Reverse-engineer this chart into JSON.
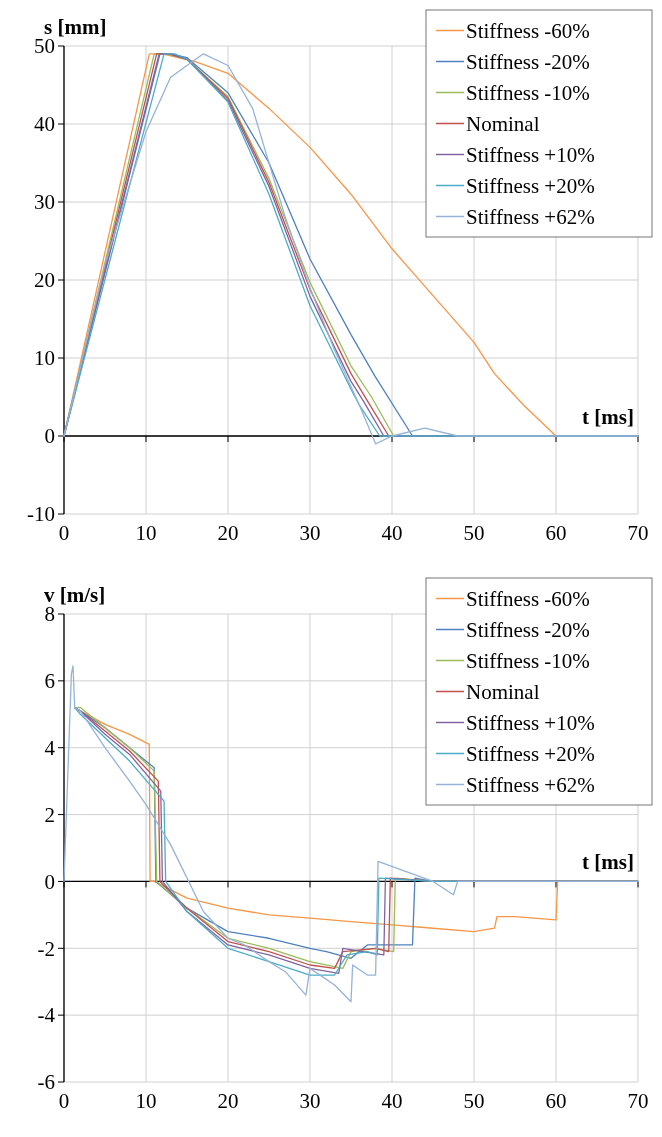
{
  "chart_data": [
    {
      "type": "line",
      "ylabel": "s [mm]",
      "xlabel": "t [ms]",
      "xlim": [
        0,
        70
      ],
      "xticks": [
        0,
        10,
        20,
        30,
        40,
        50,
        60,
        70
      ],
      "ylim": [
        -10,
        50
      ],
      "yticks": [
        -10,
        0,
        10,
        20,
        30,
        40,
        50
      ],
      "grid": true,
      "legend": "top right",
      "marker": "none",
      "line_style": "solid",
      "series": [
        {
          "name": "Stiffness -60%",
          "color": "#f79646",
          "x": [
            0,
            10.4,
            12,
            16,
            20,
            25,
            30,
            35,
            40,
            45,
            50,
            52.5,
            56,
            60,
            70
          ],
          "values": [
            0,
            49,
            49,
            48,
            46.5,
            42,
            37,
            31,
            24,
            18,
            12,
            8,
            4,
            0,
            0
          ]
        },
        {
          "name": "Stiffness -20%",
          "color": "#4f81bd",
          "x": [
            0,
            11.6,
            13,
            15,
            20,
            25,
            30,
            35,
            37.9,
            42.5,
            70
          ],
          "values": [
            0,
            49,
            49,
            48.5,
            44,
            35,
            22.7,
            13,
            7.7,
            0,
            0
          ]
        },
        {
          "name": "Stiffness -10%",
          "color": "#9bbb59",
          "x": [
            0,
            11,
            12.5,
            15,
            20,
            25,
            30,
            35,
            37.5,
            40.2,
            70
          ],
          "values": [
            0,
            49,
            49,
            48.3,
            43.5,
            33,
            19.7,
            9,
            5,
            0,
            0
          ]
        },
        {
          "name": "Nominal",
          "color": "#c0504d",
          "x": [
            0,
            11.3,
            12.8,
            15,
            20,
            25,
            30,
            35,
            37,
            39.6,
            70
          ],
          "values": [
            0,
            49,
            49,
            48.3,
            43.3,
            32.5,
            18.8,
            8,
            4.5,
            0,
            0
          ]
        },
        {
          "name": "Stiffness +10%",
          "color": "#8064a2",
          "x": [
            0,
            11.7,
            13,
            15,
            20,
            25,
            30,
            35,
            36.5,
            39,
            70
          ],
          "values": [
            0,
            49,
            49,
            48.3,
            43,
            32,
            17.9,
            7,
            4.5,
            0,
            0
          ]
        },
        {
          "name": "Stiffness +20%",
          "color": "#4bacc6",
          "x": [
            0,
            12.2,
            13.5,
            15,
            20,
            25,
            30,
            35,
            36,
            38.5,
            70
          ],
          "values": [
            0,
            49,
            49,
            48.3,
            42.8,
            31,
            16.7,
            6,
            4,
            0,
            0
          ]
        },
        {
          "name": "Stiffness +62%",
          "color": "#95b3d7",
          "x": [
            0,
            5,
            10,
            13,
            17,
            20,
            23,
            27,
            30,
            33,
            36,
            38,
            40,
            44,
            48,
            70
          ],
          "values": [
            0,
            22,
            39,
            46,
            49,
            47.5,
            42,
            28,
            19,
            11,
            4,
            -1,
            0,
            1,
            0,
            0
          ]
        }
      ]
    },
    {
      "type": "line",
      "ylabel": "v [m/s]",
      "xlabel": "t [ms]",
      "xlim": [
        0,
        70
      ],
      "xticks": [
        0,
        10,
        20,
        30,
        40,
        50,
        60,
        70
      ],
      "ylim": [
        -6,
        8
      ],
      "yticks": [
        -6,
        -4,
        -2,
        0,
        2,
        4,
        6,
        8
      ],
      "grid": true,
      "legend": "top right",
      "marker": "none",
      "line_style": "solid",
      "series": [
        {
          "name": "Stiffness -60%",
          "color": "#f79646",
          "x": [
            1.3,
            2,
            5,
            8,
            10.4,
            10.5,
            11,
            15,
            20,
            25,
            30,
            35,
            40,
            45,
            50,
            52.5,
            52.8,
            55,
            60,
            60.2,
            70
          ],
          "values": [
            5.2,
            5.1,
            4.7,
            4.4,
            4.1,
            0,
            0,
            -0.5,
            -0.8,
            -1,
            -1.1,
            -1.2,
            -1.3,
            -1.4,
            -1.5,
            -1.4,
            -1.05,
            -1.05,
            -1.15,
            0,
            0
          ]
        },
        {
          "name": "Stiffness -20%",
          "color": "#4f81bd",
          "x": [
            1.3,
            2,
            5,
            8,
            11,
            11.2,
            15,
            20,
            25,
            30,
            32,
            35,
            37,
            40,
            42.5,
            42.8,
            45,
            70
          ],
          "values": [
            5.2,
            5.1,
            4.6,
            4,
            3.4,
            0,
            -0.8,
            -1.5,
            -1.7,
            -2,
            -2.1,
            -2.3,
            -1.9,
            -1.9,
            -1.9,
            0.1,
            0,
            0
          ]
        },
        {
          "name": "Stiffness -10%",
          "color": "#9bbb59",
          "x": [
            1.3,
            2,
            5,
            8,
            11,
            11.3,
            15,
            20,
            25,
            30,
            34,
            35,
            38,
            40.2,
            40.4,
            45,
            70
          ],
          "values": [
            5.2,
            5.2,
            4.6,
            4,
            3.3,
            0,
            -0.8,
            -1.7,
            -2,
            -2.4,
            -2.6,
            -2.1,
            -2,
            -2.1,
            0.1,
            0,
            0
          ]
        },
        {
          "name": "Nominal",
          "color": "#c0504d",
          "x": [
            1.3,
            2,
            5,
            8,
            11.5,
            11.7,
            15,
            20,
            25,
            30,
            33,
            34,
            38,
            39.6,
            39.8,
            45,
            70
          ],
          "values": [
            5.2,
            5.1,
            4.5,
            3.9,
            3,
            0,
            -0.8,
            -1.8,
            -2.1,
            -2.5,
            -2.6,
            -2.1,
            -2,
            -2.1,
            0.1,
            0,
            0
          ]
        },
        {
          "name": "Stiffness +10%",
          "color": "#8064a2",
          "x": [
            1.3,
            2,
            5,
            8,
            11.8,
            12,
            15,
            20,
            25,
            30,
            33.5,
            34,
            39,
            39.2,
            45,
            70
          ],
          "values": [
            5.2,
            5.1,
            4.4,
            3.8,
            2.7,
            0,
            -0.9,
            -1.9,
            -2.2,
            -2.6,
            -2.75,
            -2,
            -2.2,
            0.1,
            0,
            0
          ]
        },
        {
          "name": "Stiffness +20%",
          "color": "#4bacc6",
          "x": [
            1.3,
            2,
            5,
            8,
            12.2,
            12.4,
            15,
            20,
            25,
            30,
            33,
            34.5,
            37,
            38.2,
            38.4,
            45,
            70
          ],
          "values": [
            5.2,
            5,
            4.3,
            3.6,
            2.4,
            0,
            -0.9,
            -2,
            -2.4,
            -2.8,
            -2.8,
            -2.2,
            -2.1,
            -2.2,
            0.1,
            0,
            0
          ]
        },
        {
          "name": "Stiffness +62%",
          "color": "#95b3d7",
          "x": [
            0,
            0.9,
            1.1,
            1.3,
            2,
            5,
            8,
            10,
            13,
            17,
            20,
            22,
            25,
            27,
            29.5,
            30,
            33,
            35,
            35.2,
            37,
            38,
            38.3,
            45,
            47.5,
            48,
            70
          ],
          "values": [
            0,
            6.2,
            6.45,
            5.2,
            5.1,
            4,
            3,
            2.3,
            1.1,
            -0.9,
            -1.7,
            -1.9,
            -2.4,
            -2.7,
            -3.4,
            -2.6,
            -3.1,
            -3.6,
            -2.5,
            -2.8,
            -2.8,
            0.6,
            0,
            -0.4,
            0,
            0
          ]
        }
      ]
    }
  ]
}
